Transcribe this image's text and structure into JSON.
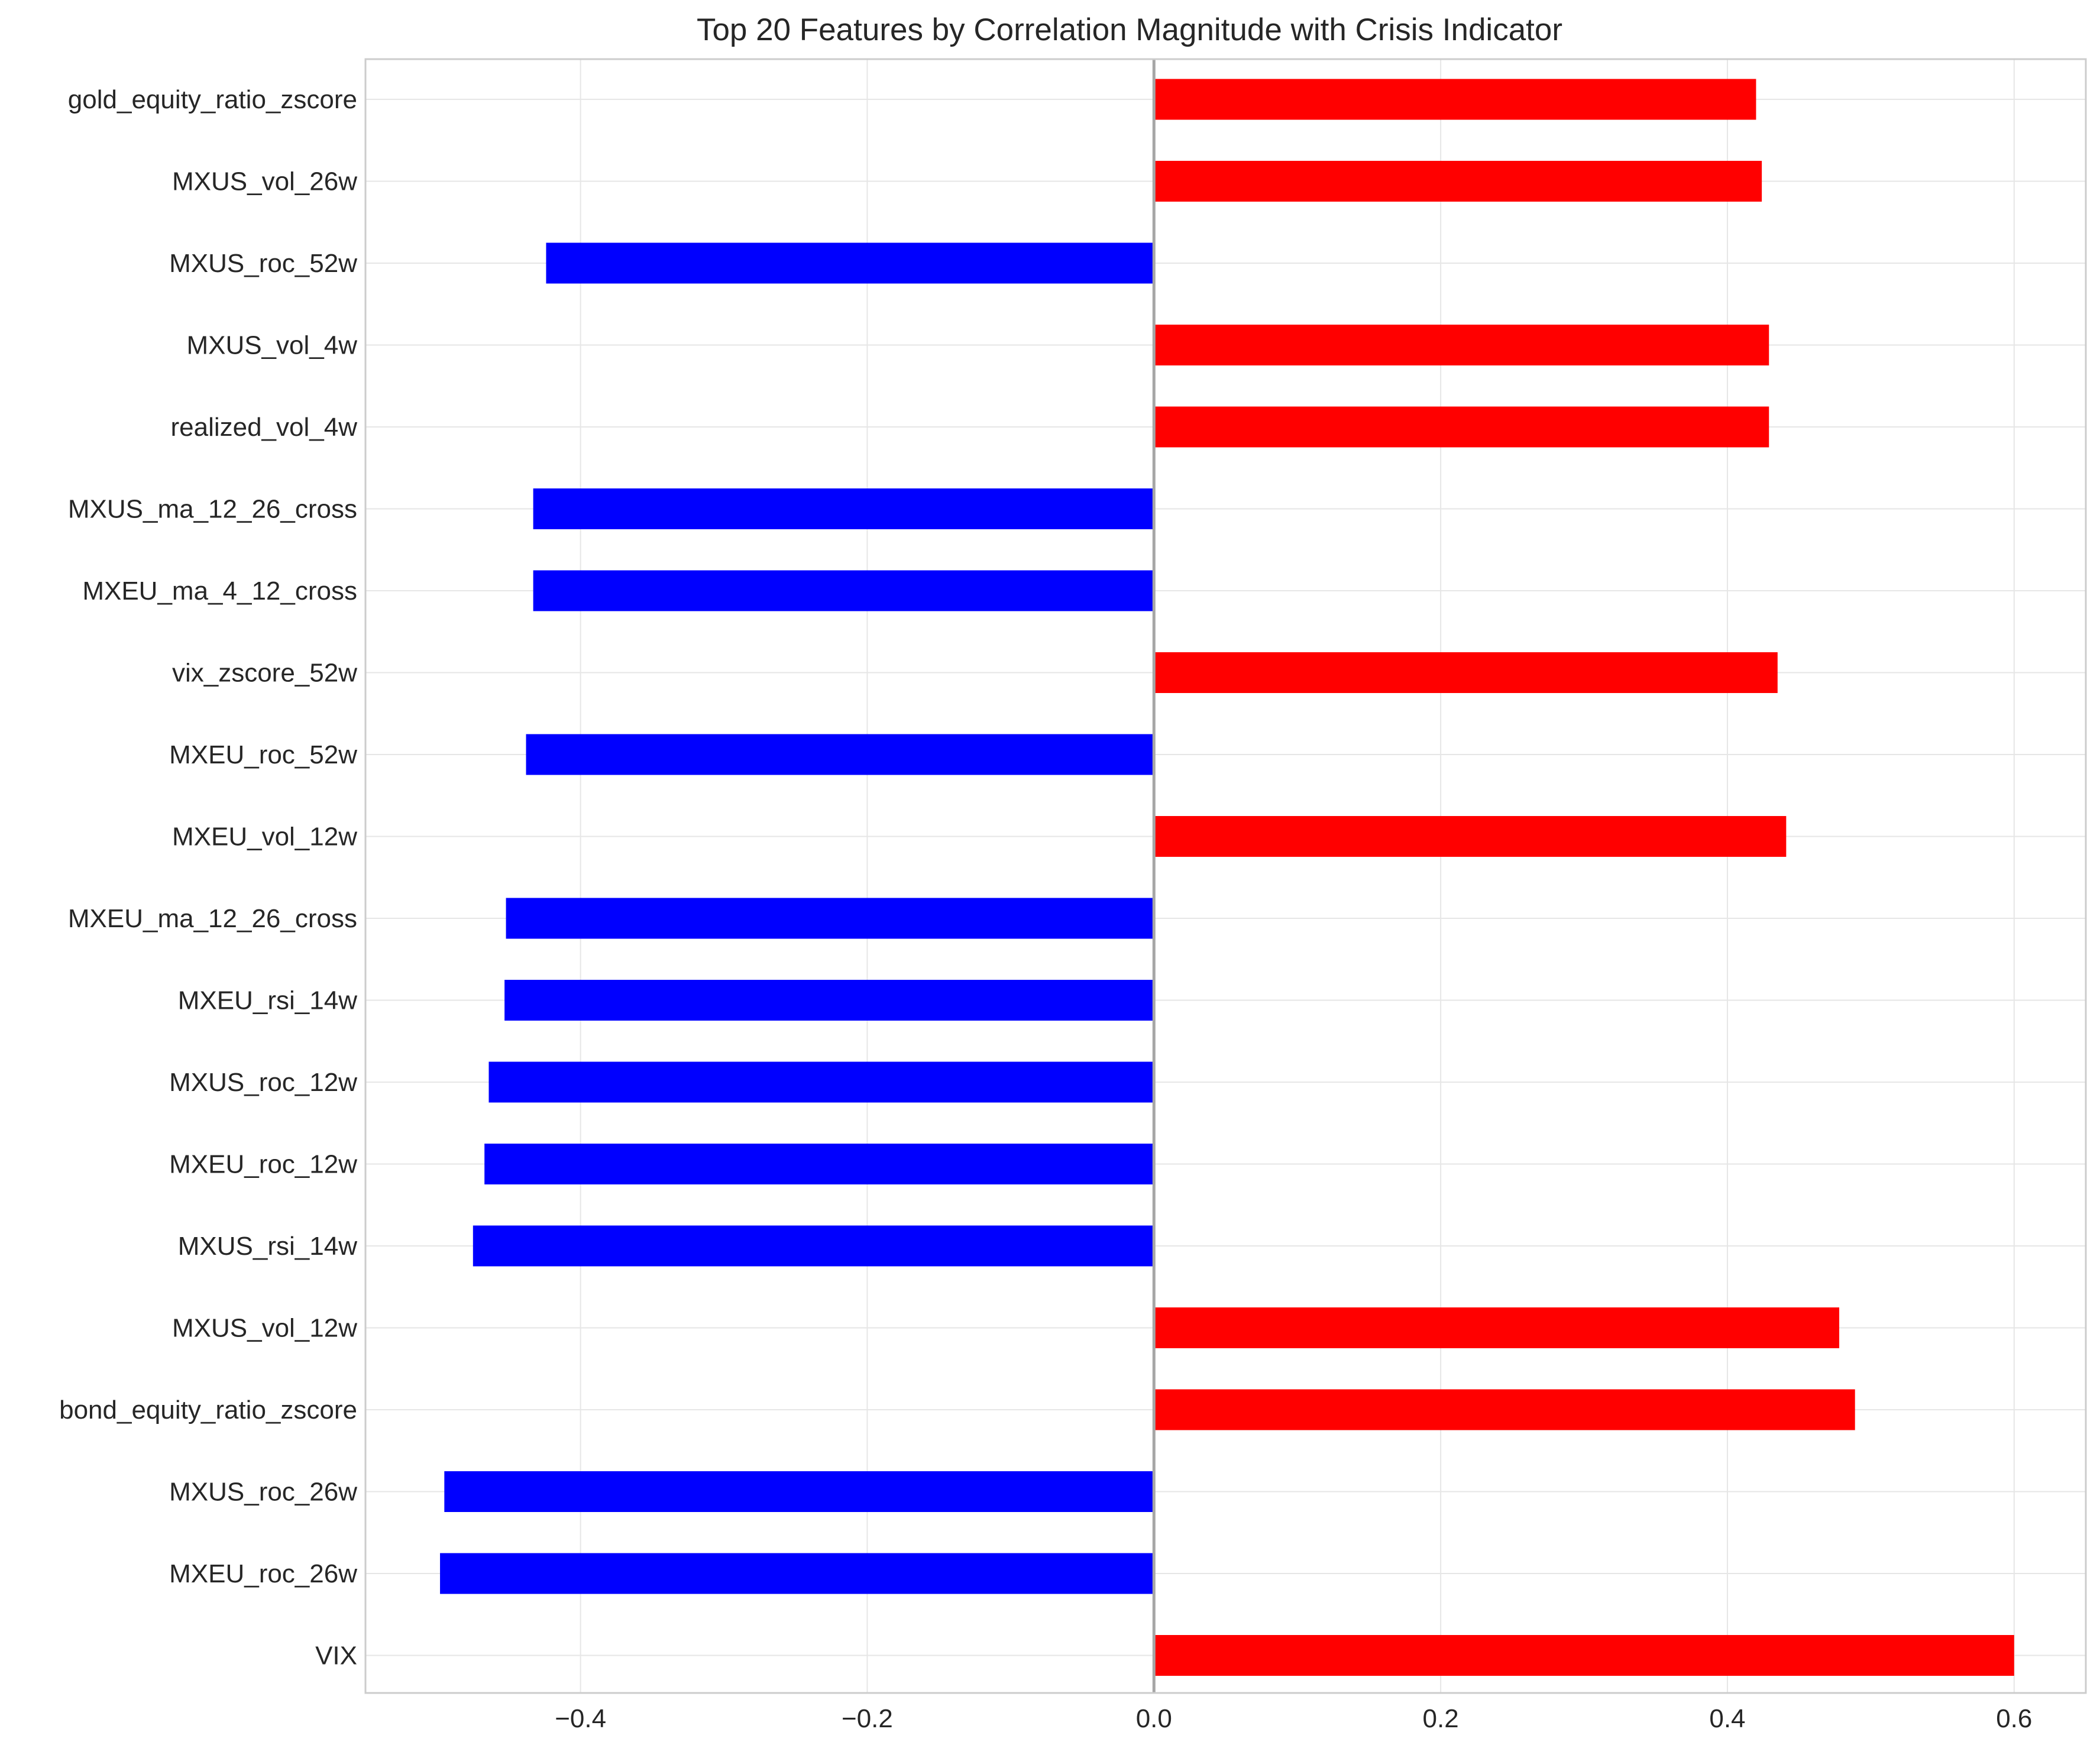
{
  "chart_data": {
    "type": "bar",
    "orientation": "horizontal",
    "title": "Top 20 Features by Correlation Magnitude with Crisis Indicator",
    "xlabel": "",
    "ylabel": "",
    "xlim": [
      -0.55,
      0.65
    ],
    "xticks": [
      -0.4,
      -0.2,
      0.0,
      0.2,
      0.4,
      0.6
    ],
    "xtick_labels": [
      "−0.4",
      "−0.2",
      "0.0",
      "0.2",
      "0.4",
      "0.6"
    ],
    "grid": true,
    "positive_color": "#ff0000",
    "negative_color": "#0000ff",
    "categories": [
      "gold_equity_ratio_zscore",
      "MXUS_vol_26w",
      "MXUS_roc_52w",
      "MXUS_vol_4w",
      "realized_vol_4w",
      "MXUS_ma_12_26_cross",
      "MXEU_ma_4_12_cross",
      "vix_zscore_52w",
      "MXEU_roc_52w",
      "MXEU_vol_12w",
      "MXEU_ma_12_26_cross",
      "MXEU_rsi_14w",
      "MXUS_roc_12w",
      "MXEU_roc_12w",
      "MXUS_rsi_14w",
      "MXUS_vol_12w",
      "bond_equity_ratio_zscore",
      "MXUS_roc_26w",
      "MXEU_roc_26w",
      "VIX"
    ],
    "values": [
      0.42,
      0.424,
      -0.424,
      0.429,
      0.429,
      -0.433,
      -0.433,
      0.435,
      -0.438,
      0.441,
      -0.452,
      -0.453,
      -0.464,
      -0.467,
      -0.475,
      0.478,
      0.489,
      -0.495,
      -0.498,
      0.6
    ]
  }
}
